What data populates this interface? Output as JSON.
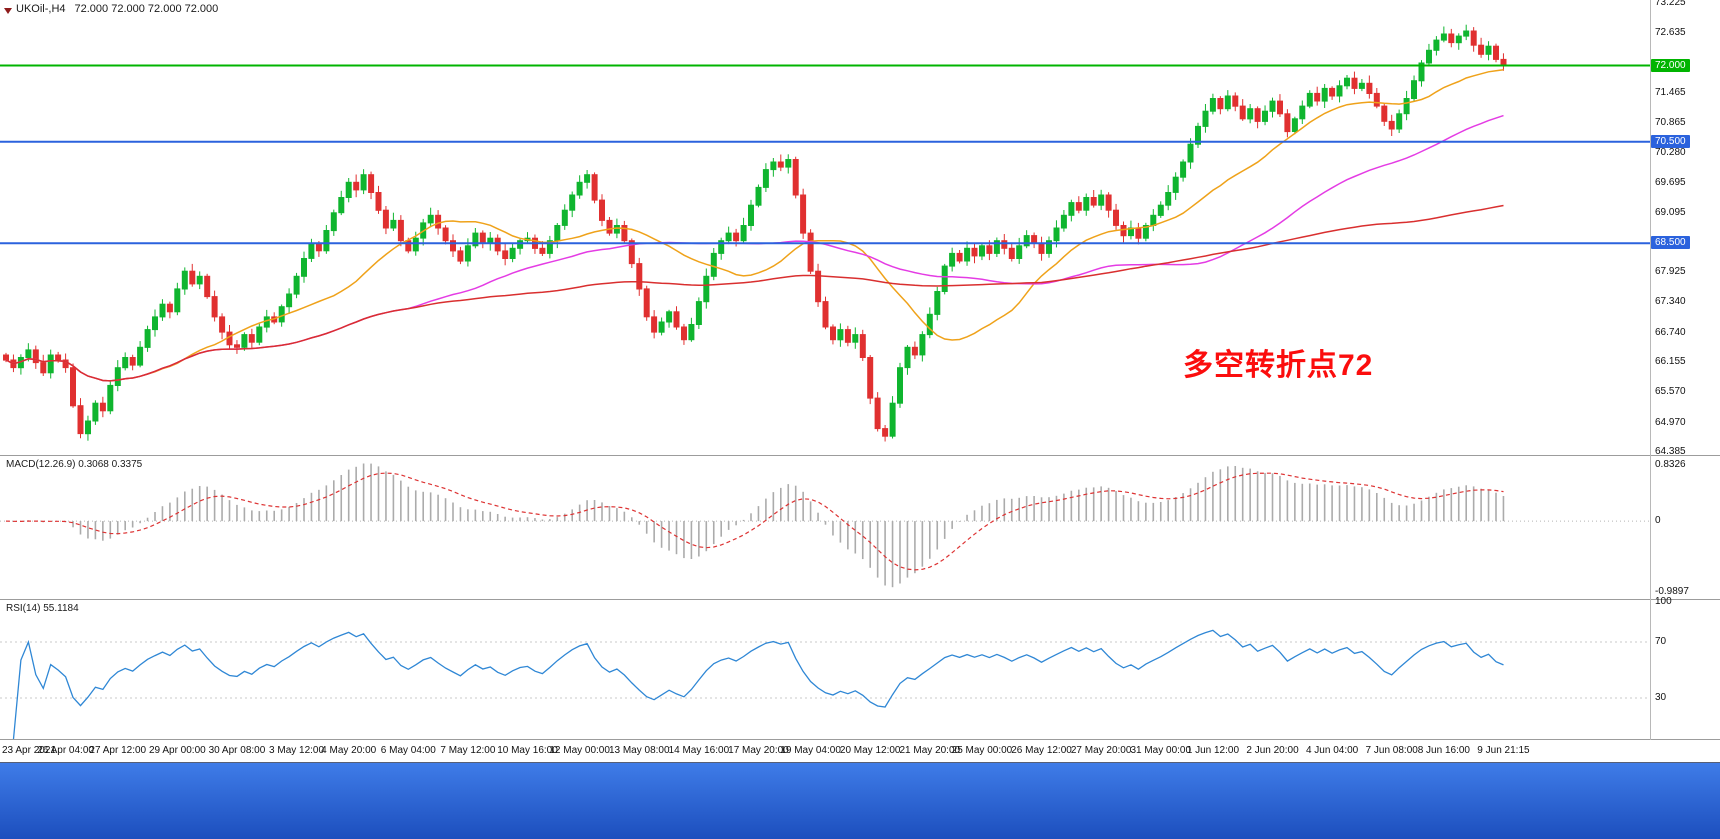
{
  "header": {
    "symbol": "UKOil-,H4",
    "ohlc": "72.000 72.000 72.000 72.000"
  },
  "indicators": {
    "macd_label": "MACD(12.26.9) 0.3068 0.3375",
    "rsi_label": "RSI(14) 55.1184"
  },
  "annotation": {
    "text": "多空转折点72",
    "color": "#fb0d0d"
  },
  "colors": {
    "candle_up": "#0fb52f",
    "candle_down": "#e03030",
    "ma_fast": "#efa21a",
    "ma_mid": "#e43ce4",
    "ma_slow": "#d92f2f",
    "macd_hist": "#ababab",
    "macd_signal": "#dd3333",
    "rsi_line": "#2f87d5",
    "level_green": "#00b400",
    "level_blue": "#2b62dd",
    "separator": "#9c9c9c",
    "bottom_bar_top": "#3f7ce8",
    "bottom_bar_bottom": "#1c4ebd"
  },
  "chart_data": {
    "type": "candlestick",
    "symbol": "UKOil-",
    "timeframe": "H4",
    "current_price": "72.000",
    "first_open": 66.3,
    "closes": [
      66.2,
      66.05,
      66.25,
      66.4,
      66.15,
      65.95,
      66.3,
      66.2,
      66.05,
      65.3,
      64.75,
      65.0,
      65.35,
      65.2,
      65.7,
      66.05,
      66.25,
      66.1,
      66.45,
      66.8,
      67.05,
      67.3,
      67.15,
      67.6,
      67.95,
      67.7,
      67.85,
      67.45,
      67.05,
      66.75,
      66.5,
      66.45,
      66.7,
      66.55,
      66.85,
      67.05,
      66.95,
      67.25,
      67.5,
      67.85,
      68.2,
      68.5,
      68.35,
      68.75,
      69.1,
      69.4,
      69.7,
      69.55,
      69.85,
      69.5,
      69.15,
      68.8,
      68.95,
      68.55,
      68.35,
      68.6,
      68.9,
      69.05,
      68.8,
      68.55,
      68.35,
      68.15,
      68.45,
      68.7,
      68.5,
      68.6,
      68.35,
      68.2,
      68.4,
      68.55,
      68.6,
      68.4,
      68.3,
      68.55,
      68.85,
      69.15,
      69.45,
      69.7,
      69.85,
      69.35,
      68.95,
      68.7,
      68.85,
      68.55,
      68.1,
      67.6,
      67.05,
      66.75,
      66.95,
      67.15,
      66.85,
      66.6,
      66.9,
      67.35,
      67.85,
      68.3,
      68.55,
      68.7,
      68.55,
      68.85,
      69.25,
      69.6,
      69.95,
      70.1,
      70.0,
      70.15,
      69.45,
      68.7,
      67.95,
      67.35,
      66.85,
      66.6,
      66.8,
      66.55,
      66.7,
      66.25,
      65.45,
      64.85,
      64.7,
      65.35,
      66.05,
      66.45,
      66.3,
      66.7,
      67.1,
      67.55,
      68.05,
      68.3,
      68.15,
      68.4,
      68.25,
      68.45,
      68.3,
      68.55,
      68.4,
      68.2,
      68.45,
      68.65,
      68.5,
      68.3,
      68.55,
      68.8,
      69.05,
      69.3,
      69.15,
      69.4,
      69.25,
      69.45,
      69.15,
      68.85,
      68.65,
      68.8,
      68.6,
      68.85,
      69.05,
      69.25,
      69.5,
      69.8,
      70.1,
      70.45,
      70.8,
      71.1,
      71.35,
      71.15,
      71.4,
      71.2,
      70.95,
      71.15,
      70.9,
      71.1,
      71.3,
      71.05,
      70.7,
      70.95,
      71.2,
      71.45,
      71.3,
      71.55,
      71.4,
      71.6,
      71.75,
      71.55,
      71.65,
      71.45,
      71.2,
      70.9,
      70.75,
      71.05,
      71.35,
      71.7,
      72.05,
      72.3,
      72.5,
      72.62,
      72.45,
      72.58,
      72.68,
      72.4,
      72.22,
      72.38,
      72.12,
      72.0
    ],
    "price_axis": {
      "max": 73.29,
      "min": 64.33,
      "ticks": [
        "73.225",
        "72.635",
        "71.465",
        "70.865",
        "70.280",
        "69.695",
        "69.095",
        "67.925",
        "67.340",
        "66.740",
        "66.155",
        "65.570",
        "64.970",
        "64.385"
      ]
    },
    "levels": [
      {
        "value": 72.0,
        "label": "72.000",
        "color_key": "level_green"
      },
      {
        "value": 70.5,
        "label": "70.500",
        "color_key": "level_blue"
      },
      {
        "value": 68.5,
        "label": "68.500",
        "color_key": "level_blue"
      }
    ],
    "moving_averages": [
      {
        "period": 20,
        "color_key": "ma_fast"
      },
      {
        "period": 55,
        "color_key": "ma_mid"
      },
      {
        "period": 140,
        "color_key": "ma_slow"
      }
    ],
    "macd": {
      "fast": 12,
      "slow": 26,
      "signal": 9,
      "value": "0.3068",
      "signal_value": "0.3375",
      "axis": {
        "max": 0.8326,
        "min": -0.9897,
        "labels": [
          "0.8326",
          "0",
          "-0.9897"
        ]
      }
    },
    "rsi": {
      "period": 14,
      "value": "55.1184",
      "levels": [
        70,
        30
      ],
      "axis_labels": [
        "100",
        "70",
        "30"
      ]
    },
    "time_labels": [
      "23 Apr 2021",
      "26 Apr 04:00",
      "27 Apr 12:00",
      "29 Apr 00:00",
      "30 Apr 08:00",
      "3 May 12:00",
      "4 May 20:00",
      "6 May 04:00",
      "7 May 12:00",
      "10 May 16:00",
      "12 May 00:00",
      "13 May 08:00",
      "14 May 16:00",
      "17 May 20:00",
      "19 May 04:00",
      "20 May 12:00",
      "21 May 20:00",
      "25 May 00:00",
      "26 May 12:00",
      "27 May 20:00",
      "31 May 00:00",
      "1 Jun 12:00",
      "2 Jun 20:00",
      "4 Jun 04:00",
      "7 Jun 08:00",
      "8 Jun 16:00",
      "9 Jun 21:15"
    ]
  }
}
